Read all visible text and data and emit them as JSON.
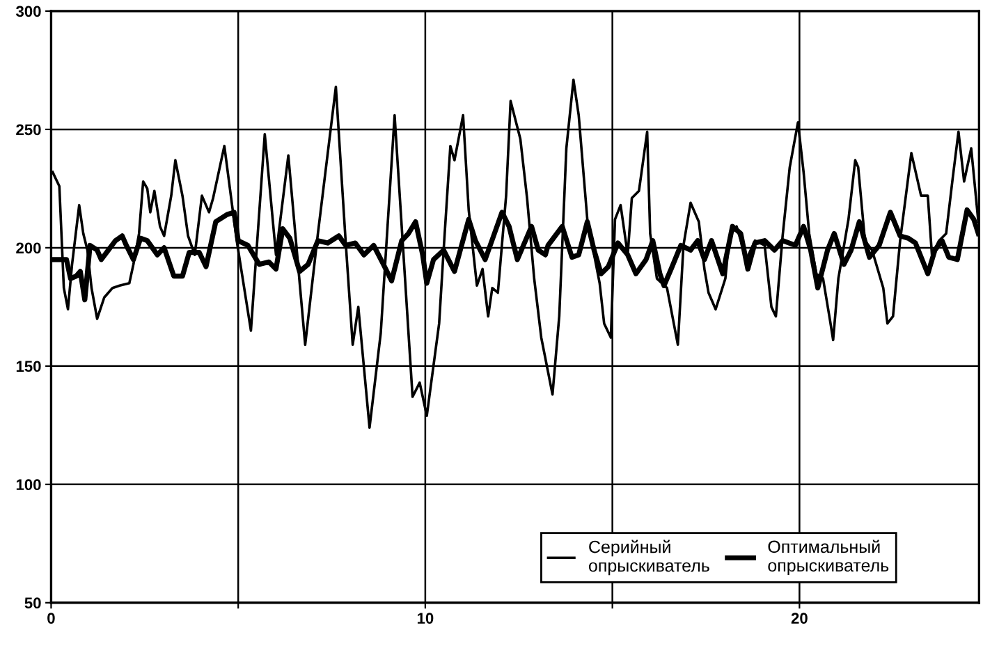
{
  "chart_data": {
    "type": "line",
    "xlim": [
      0,
      24.8
    ],
    "xticks": [
      0,
      {
        "value": 5,
        "label": null
      },
      10,
      {
        "value": 15,
        "label": null
      },
      20
    ],
    "ylim": [
      50,
      300
    ],
    "yticks": [
      50,
      100,
      150,
      200,
      250,
      300
    ],
    "grid": true,
    "legend": "bottom right",
    "marker": "none",
    "line_style": "solid",
    "series": [
      {
        "name": "Серийный\nопрыскиватель",
        "color": "#000000",
        "x": [
          0.04,
          0.22,
          0.34,
          0.45,
          0.56,
          0.75,
          0.86,
          0.97,
          1.08,
          1.23,
          1.42,
          1.53,
          1.64,
          1.83,
          2.09,
          2.2,
          2.35,
          2.46,
          2.57,
          2.65,
          2.76,
          2.91,
          3.02,
          3.21,
          3.32,
          3.51,
          3.66,
          3.84,
          4.03,
          4.22,
          4.33,
          4.63,
          4.96,
          5.34,
          5.71,
          6.01,
          6.34,
          6.79,
          7.13,
          7.61,
          7.87,
          8.06,
          8.21,
          8.51,
          8.81,
          9.18,
          9.66,
          9.85,
          10.04,
          10.37,
          10.49,
          10.67,
          10.78,
          11.01,
          11.16,
          11.38,
          11.53,
          11.68,
          11.79,
          11.94,
          12.16,
          12.28,
          12.54,
          12.72,
          12.91,
          13.1,
          13.4,
          13.58,
          13.77,
          13.96,
          14.1,
          14.33,
          14.66,
          14.78,
          14.96,
          15.07,
          15.22,
          15.41,
          15.52,
          15.71,
          15.93,
          16.01,
          16.19,
          16.46,
          16.75,
          16.9,
          17.09,
          17.31,
          17.46,
          17.57,
          17.76,
          18.02,
          18.13,
          18.32,
          18.58,
          18.81,
          19.07,
          19.25,
          19.37,
          19.55,
          19.74,
          19.96,
          20.11,
          20.26,
          20.45,
          20.63,
          20.82,
          20.9,
          21.04,
          21.31,
          21.49,
          21.57,
          21.75,
          21.94,
          22.24,
          22.35,
          22.5,
          22.69,
          22.99,
          23.25,
          23.43,
          23.54,
          23.73,
          23.92,
          24.1,
          24.25,
          24.4,
          24.59,
          24.78
        ],
        "values": [
          232,
          226,
          183,
          174,
          193,
          218,
          206,
          199,
          183,
          170,
          179,
          181,
          183,
          184,
          185,
          193,
          206,
          228,
          225,
          215,
          224,
          209,
          205,
          222,
          237,
          222,
          205,
          197,
          222,
          215,
          221,
          243,
          203,
          165,
          248,
          197,
          239,
          159,
          206,
          268,
          203,
          159,
          175,
          124,
          164,
          256,
          137,
          143,
          129,
          168,
          199,
          243,
          237,
          256,
          216,
          184,
          191,
          171,
          183,
          181,
          222,
          262,
          246,
          221,
          187,
          162,
          138,
          171,
          242,
          271,
          256,
          212,
          185,
          168,
          162,
          212,
          218,
          197,
          221,
          224,
          249,
          206,
          187,
          183,
          159,
          201,
          219,
          211,
          191,
          181,
          174,
          187,
          205,
          209,
          195,
          203,
          201,
          175,
          171,
          205,
          234,
          253,
          232,
          206,
          189,
          187,
          169,
          161,
          187,
          212,
          237,
          234,
          203,
          199,
          183,
          168,
          171,
          203,
          240,
          222,
          222,
          197,
          203,
          206,
          230,
          249,
          228,
          242,
          211
        ]
      },
      {
        "name": "Оптимальный\nопрыскиватель",
        "color": "#000000",
        "x": [
          0.04,
          0.22,
          0.41,
          0.52,
          0.67,
          0.78,
          0.9,
          1.04,
          1.23,
          1.34,
          1.53,
          1.72,
          1.9,
          2.01,
          2.2,
          2.39,
          2.57,
          2.84,
          3.02,
          3.28,
          3.51,
          3.69,
          3.96,
          4.14,
          4.4,
          4.7,
          4.89,
          5.0,
          5.26,
          5.56,
          5.82,
          6.01,
          6.19,
          6.38,
          6.64,
          6.87,
          7.13,
          7.39,
          7.69,
          7.87,
          8.13,
          8.36,
          8.62,
          8.88,
          9.1,
          9.37,
          9.55,
          9.74,
          9.93,
          10.04,
          10.22,
          10.49,
          10.78,
          11.16,
          11.34,
          11.6,
          12.05,
          12.24,
          12.46,
          12.84,
          13.02,
          13.21,
          13.28,
          13.66,
          13.92,
          14.1,
          14.33,
          14.51,
          14.7,
          14.89,
          15.15,
          15.41,
          15.63,
          15.9,
          16.08,
          16.27,
          16.38,
          16.57,
          16.83,
          17.09,
          17.28,
          17.46,
          17.65,
          17.95,
          18.21,
          18.43,
          18.62,
          18.81,
          19.07,
          19.33,
          19.55,
          19.89,
          20.11,
          20.3,
          20.49,
          20.75,
          20.93,
          21.19,
          21.38,
          21.6,
          21.87,
          22.13,
          22.43,
          22.69,
          22.91,
          23.1,
          23.43,
          23.62,
          23.81,
          23.99,
          24.22,
          24.48,
          24.66,
          24.78
        ],
        "values": [
          195,
          195,
          195,
          187,
          188,
          190,
          178,
          201,
          199,
          195,
          199,
          203,
          205,
          201,
          195,
          204,
          203,
          197,
          200,
          188,
          188,
          198,
          198,
          192,
          211,
          214,
          215,
          203,
          201,
          193,
          194,
          191,
          208,
          204,
          190,
          193,
          203,
          202,
          205,
          201,
          202,
          197,
          201,
          193,
          186,
          203,
          206,
          211,
          197,
          185,
          195,
          199,
          190,
          212,
          203,
          195,
          215,
          209,
          195,
          209,
          199,
          197,
          201,
          209,
          196,
          197,
          211,
          199,
          189,
          192,
          202,
          197,
          189,
          195,
          203,
          189,
          184,
          191,
          201,
          199,
          203,
          195,
          203,
          189,
          209,
          206,
          191,
          202,
          203,
          199,
          203,
          201,
          209,
          199,
          183,
          199,
          206,
          193,
          199,
          211,
          196,
          201,
          215,
          205,
          204,
          202,
          189,
          199,
          203,
          196,
          195,
          216,
          212,
          206
        ]
      }
    ]
  }
}
